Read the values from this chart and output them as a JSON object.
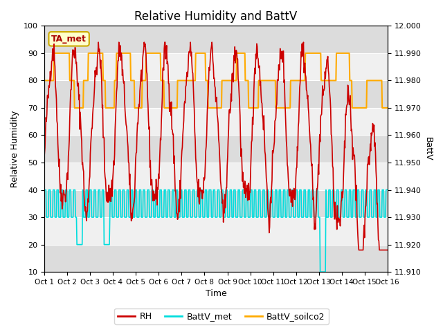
{
  "title": "Relative Humidity and BattV",
  "xlabel": "Time",
  "ylabel_left": "Relative Humidity",
  "ylabel_right": "BattV",
  "annotation_text": "TA_met",
  "xlim": [
    0,
    15
  ],
  "ylim_left": [
    10,
    100
  ],
  "ylim_right": [
    11.91,
    12.0
  ],
  "xtick_labels": [
    "Oct 1",
    "Oct 2",
    "Oct 3",
    "Oct 4",
    "Oct 5",
    "Oct 6",
    "Oct 7",
    "Oct 8",
    "Oct 9",
    "Oct 10",
    "Oct 11",
    "Oct 12",
    "Oct 13",
    "Oct 14",
    "Oct 15",
    "Oct 16"
  ],
  "ytick_right": [
    11.91,
    11.92,
    11.93,
    11.94,
    11.95,
    11.96,
    11.97,
    11.98,
    11.99,
    12.0
  ],
  "ytick_left": [
    10,
    20,
    30,
    40,
    50,
    60,
    70,
    80,
    90,
    100
  ],
  "rh_color": "#cc0000",
  "battv_met_color": "#00dddd",
  "battv_soilco2_color": "#ffaa00",
  "background_color": "#f0f0f0",
  "band_dark": "#dcdcdc",
  "band_light": "#f0f0f0",
  "legend_rh_label": "RH",
  "legend_bvm_label": "BattV_met",
  "legend_bvs_label": "BattV_soilco2"
}
